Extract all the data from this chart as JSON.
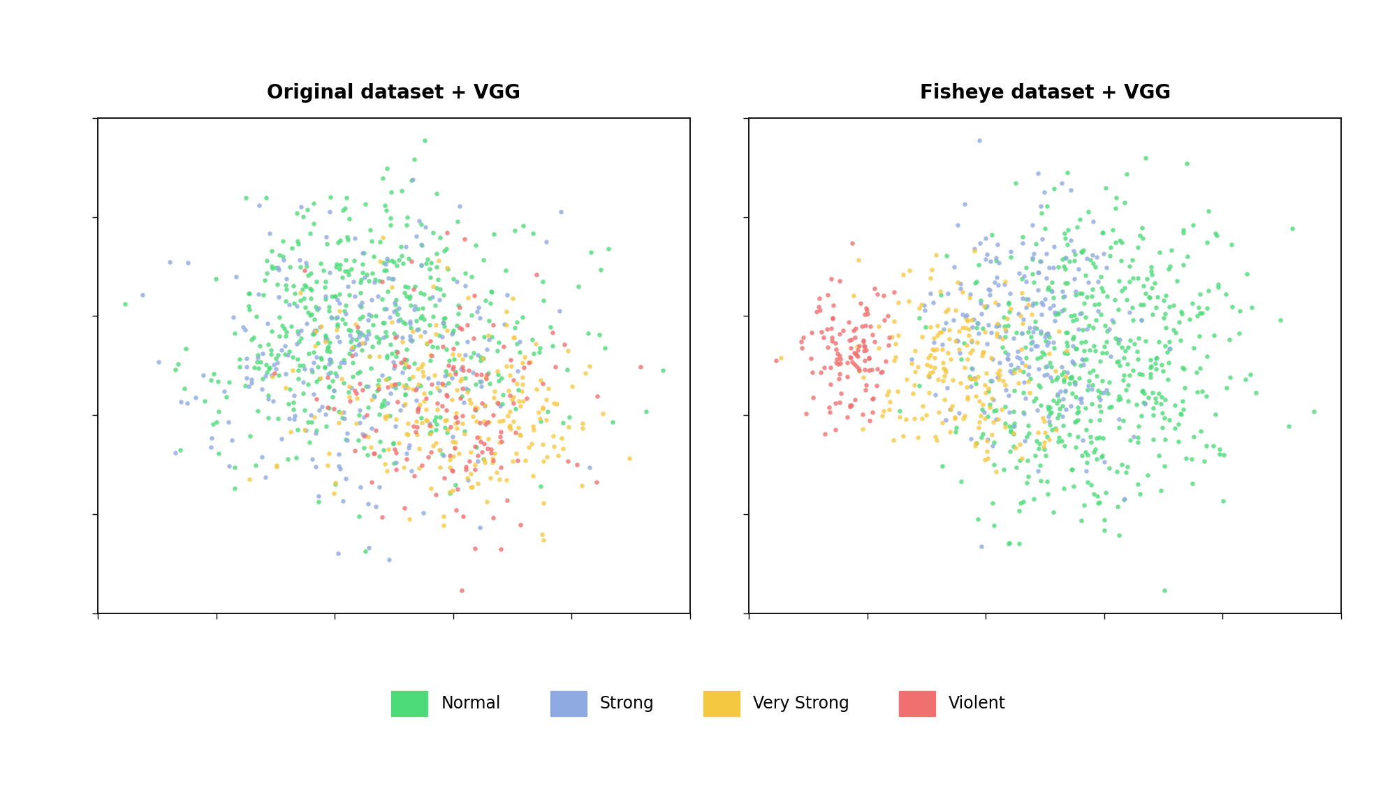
{
  "title_left": "Original dataset + VGG",
  "title_right": "Fisheye dataset + VGG",
  "colors": {
    "Normal": "#4ddb7a",
    "Strong": "#8faae0",
    "Very Strong": "#f5c842",
    "Violent": "#f07070"
  },
  "legend_labels": [
    "Normal",
    "Strong",
    "Very Strong",
    "Violent"
  ],
  "background_color": "#ffffff",
  "title_fontsize": 20,
  "legend_fontsize": 17,
  "marker_size": 22,
  "alpha": 0.8
}
